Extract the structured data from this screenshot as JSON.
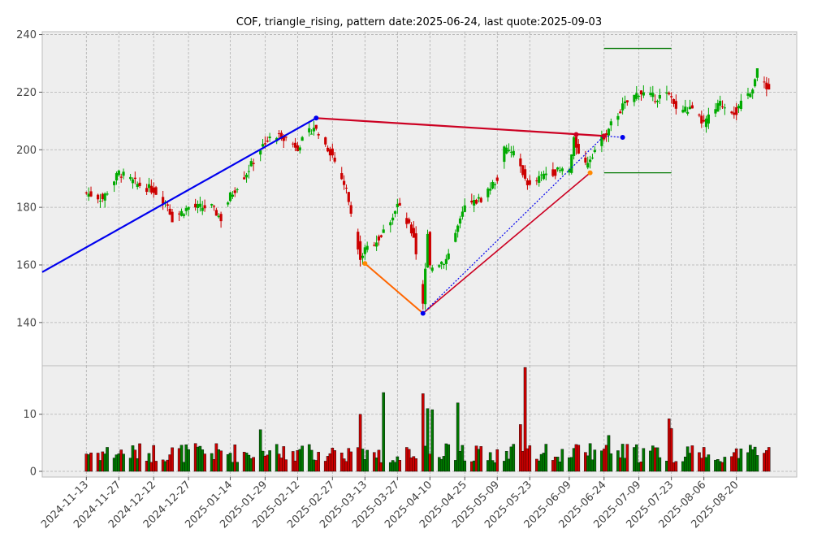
{
  "chart_data": {
    "type": "candlestick",
    "title": "COF, triangle_rising, pattern date:2025-06-24, last quote:2025-09-03",
    "price_axis": {
      "ylim": [
        125,
        241
      ],
      "ticks": [
        140,
        160,
        180,
        200,
        220,
        240
      ]
    },
    "volume_axis": {
      "ylim": [
        -1,
        18.5
      ],
      "ticks": [
        0,
        10
      ]
    },
    "date_ticks": [
      "2024-11-13",
      "2024-11-27",
      "2024-12-12",
      "2024-12-27",
      "2025-01-14",
      "2025-01-29",
      "2025-02-12",
      "2025-02-27",
      "2025-03-13",
      "2025-03-27",
      "2025-04-10",
      "2025-04-25",
      "2025-05-09",
      "2025-05-23",
      "2025-06-09",
      "2025-06-24",
      "2025-07-09",
      "2025-07-23",
      "2025-08-06",
      "2025-08-20"
    ],
    "anchors": [
      {
        "date": "2024-11-13",
        "close": 185
      },
      {
        "date": "2024-11-20",
        "close": 183
      },
      {
        "date": "2024-11-27",
        "close": 192
      },
      {
        "date": "2024-12-05",
        "close": 188
      },
      {
        "date": "2024-12-12",
        "close": 186
      },
      {
        "date": "2024-12-18",
        "close": 181
      },
      {
        "date": "2024-12-20",
        "close": 176
      },
      {
        "date": "2024-12-27",
        "close": 180
      },
      {
        "date": "2025-01-06",
        "close": 180
      },
      {
        "date": "2025-01-10",
        "close": 176
      },
      {
        "date": "2025-01-14",
        "close": 184
      },
      {
        "date": "2025-01-21",
        "close": 192
      },
      {
        "date": "2025-01-29",
        "close": 203
      },
      {
        "date": "2025-02-05",
        "close": 205
      },
      {
        "date": "2025-02-12",
        "close": 201
      },
      {
        "date": "2025-02-19",
        "close": 208
      },
      {
        "date": "2025-02-27",
        "close": 198
      },
      {
        "date": "2025-03-05",
        "close": 186
      },
      {
        "date": "2025-03-11",
        "close": 163
      },
      {
        "date": "2025-03-13",
        "close": 165
      },
      {
        "date": "2025-03-20",
        "close": 170
      },
      {
        "date": "2025-03-27",
        "close": 181
      },
      {
        "date": "2025-04-03",
        "close": 170
      },
      {
        "date": "2025-04-07",
        "close": 147
      },
      {
        "date": "2025-04-09",
        "close": 170
      },
      {
        "date": "2025-04-10",
        "close": 159
      },
      {
        "date": "2025-04-17",
        "close": 162
      },
      {
        "date": "2025-04-25",
        "close": 180
      },
      {
        "date": "2025-05-02",
        "close": 183
      },
      {
        "date": "2025-05-09",
        "close": 190
      },
      {
        "date": "2025-05-12",
        "close": 200
      },
      {
        "date": "2025-05-16",
        "close": 199
      },
      {
        "date": "2025-05-23",
        "close": 187
      },
      {
        "date": "2025-05-30",
        "close": 192
      },
      {
        "date": "2025-06-09",
        "close": 193
      },
      {
        "date": "2025-06-11",
        "close": 203
      },
      {
        "date": "2025-06-16",
        "close": 195
      },
      {
        "date": "2025-06-24",
        "close": 205
      },
      {
        "date": "2025-07-02",
        "close": 215
      },
      {
        "date": "2025-07-09",
        "close": 220
      },
      {
        "date": "2025-07-16",
        "close": 218
      },
      {
        "date": "2025-07-21",
        "close": 219
      },
      {
        "date": "2025-07-23",
        "close": 218
      },
      {
        "date": "2025-07-25",
        "close": 214
      },
      {
        "date": "2025-07-31",
        "close": 214
      },
      {
        "date": "2025-08-06",
        "close": 209
      },
      {
        "date": "2025-08-13",
        "close": 216
      },
      {
        "date": "2025-08-20",
        "close": 213
      },
      {
        "date": "2025-08-27",
        "close": 222
      },
      {
        "date": "2025-08-29",
        "close": 227
      },
      {
        "date": "2025-09-03",
        "close": 221
      }
    ],
    "volume_spikes": [
      {
        "date": "2025-01-27",
        "value": 7.3
      },
      {
        "date": "2025-03-11",
        "value": 10
      },
      {
        "date": "2025-03-21",
        "value": 13.8
      },
      {
        "date": "2025-04-07",
        "value": 13.6
      },
      {
        "date": "2025-04-09",
        "value": 11
      },
      {
        "date": "2025-04-11",
        "value": 10.8
      },
      {
        "date": "2025-04-22",
        "value": 12
      },
      {
        "date": "2025-05-21",
        "value": 18.2
      },
      {
        "date": "2025-05-19",
        "value": 8.2
      },
      {
        "date": "2025-06-26",
        "value": 6.3
      },
      {
        "date": "2025-07-22",
        "value": 9.2
      },
      {
        "date": "2025-07-23",
        "value": 7.5
      }
    ],
    "overlays": {
      "upper_trendline": {
        "color": "#cc0022",
        "points": [
          {
            "date": "2025-02-20",
            "price": 211
          },
          {
            "date": "2025-06-24",
            "price": 204.8
          }
        ]
      },
      "upper_touch": {
        "date": "2025-06-12",
        "price": 205.3
      },
      "lower_trendline": {
        "color": "#ff6600",
        "points": [
          {
            "date": "2025-03-13",
            "price": 160.5
          },
          {
            "date": "2025-04-07",
            "price": 143.2
          }
        ]
      },
      "rising_line": {
        "color": "#cc0022",
        "points": [
          {
            "date": "2025-04-07",
            "price": 143.2
          },
          {
            "date": "2025-06-18",
            "price": 192
          }
        ]
      },
      "lead_in_line": {
        "color": "#0000ee",
        "points": [
          {
            "date": "2024-10-25",
            "price": 157.5
          },
          {
            "date": "2025-02-20",
            "price": 211
          }
        ]
      },
      "dotted_projection": {
        "color": "#0000ee",
        "points": [
          {
            "date": "2025-04-07",
            "price": 143.2
          },
          {
            "date": "2025-06-24",
            "price": 204.8
          },
          {
            "date": "2025-07-02",
            "price": 204.3
          }
        ]
      },
      "target_upper": {
        "color": "#007700",
        "price": 235.2,
        "from": "2025-06-24",
        "to": "2025-07-23"
      },
      "target_lower": {
        "color": "#007700",
        "price": 192,
        "from": "2025-06-24",
        "to": "2025-07-23"
      }
    },
    "colors": {
      "up": "#00aa00",
      "down": "#cc0000",
      "background": "#eeeeee",
      "grid": "#b0b0b0"
    },
    "grid": true
  }
}
